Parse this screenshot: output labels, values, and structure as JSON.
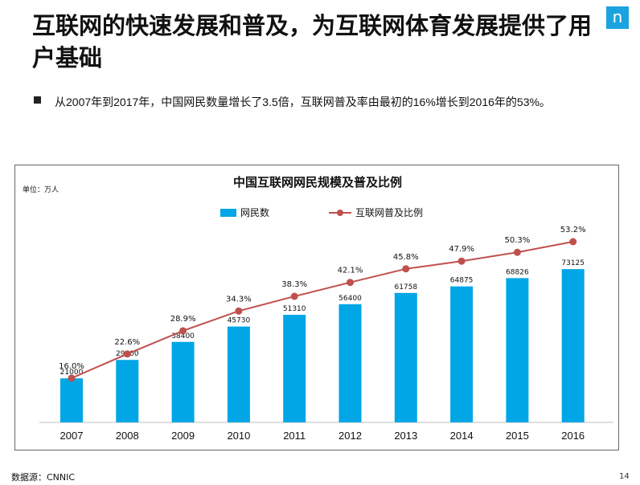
{
  "page": {
    "title": "互联网的快速发展和普及，为互联网体育发展提供了用户基础",
    "logo_letter": "n",
    "bullet": "从2007年到2017年，中国网民数量增长了3.5倍，互联网普及率由最初的16%增长到2016年的53%。",
    "source": "数据源：CNNIC",
    "page_number": "14"
  },
  "colors": {
    "bar": "#00a6e6",
    "line": "#c0504d",
    "accent": "#1aa3e0"
  },
  "chart_data": {
    "type": "bar",
    "title": "中国互联网网民规模及普及比例",
    "unit_label": "单位：万人",
    "categories": [
      "2007",
      "2008",
      "2009",
      "2010",
      "2011",
      "2012",
      "2013",
      "2014",
      "2015",
      "2016"
    ],
    "series": [
      {
        "name": "网民数",
        "type": "bar",
        "values": [
          21000,
          29800,
          38400,
          45730,
          51310,
          56400,
          61758,
          64875,
          68826,
          73125
        ]
      },
      {
        "name": "互联网普及比例",
        "type": "line",
        "values": [
          16.0,
          22.6,
          28.9,
          34.3,
          38.3,
          42.1,
          45.8,
          47.9,
          50.3,
          53.2
        ],
        "labels": [
          "16.0%",
          "22.6%",
          "28.9%",
          "34.3%",
          "38.3%",
          "42.1%",
          "45.8%",
          "47.9%",
          "50.3%",
          "53.2%"
        ]
      }
    ],
    "legend_position": "top-center",
    "grid": false
  }
}
